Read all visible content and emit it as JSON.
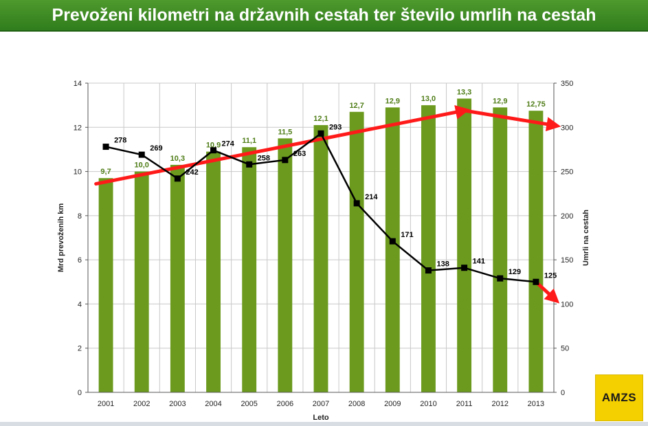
{
  "slide": {
    "title": "Prevoženi kilometri na državnih cestah ter število umrlih na cestah",
    "logo_text": "AMZS"
  },
  "chart_data": {
    "type": "bar+line",
    "categories": [
      "2001",
      "2002",
      "2003",
      "2004",
      "2005",
      "2006",
      "2007",
      "2008",
      "2009",
      "2010",
      "2011",
      "2012",
      "2013"
    ],
    "series": [
      {
        "name": "Mrd prevoženih km",
        "type": "bar",
        "axis": "left",
        "values": [
          9.7,
          10.0,
          10.3,
          10.9,
          11.1,
          11.5,
          12.1,
          12.7,
          12.9,
          13.0,
          13.3,
          12.9,
          12.75
        ],
        "labels": [
          "9,7",
          "10,0",
          "10,3",
          "10,9",
          "11,1",
          "11,5",
          "12,1",
          "12,7",
          "12,9",
          "13,0",
          "13,3",
          "12,9",
          "12,75"
        ],
        "color": "#6b9a1e",
        "label_color": "#4f7d17"
      },
      {
        "name": "Umrli na cestah",
        "type": "line",
        "axis": "right",
        "values": [
          278,
          269,
          242,
          274,
          258,
          263,
          293,
          214,
          171,
          138,
          141,
          129,
          125
        ],
        "labels": [
          "278",
          "269",
          "242",
          "274",
          "258",
          "263",
          "293",
          "214",
          "171",
          "138",
          "141",
          "129",
          "125"
        ],
        "color": "#000000"
      }
    ],
    "xlabel": "Leto",
    "ylabel_left": "Mrd prevoženih km",
    "ylabel_right": "Umrli na cestah",
    "ylim_left": [
      0,
      14
    ],
    "ylim_right": [
      0,
      350
    ],
    "yticks_left": [
      "0",
      "2",
      "4",
      "6",
      "8",
      "10",
      "12",
      "14"
    ],
    "yticks_right": [
      "0",
      "50",
      "100",
      "150",
      "200",
      "250",
      "300",
      "350"
    ],
    "grid": true,
    "annotations": [
      {
        "type": "trend-arrow",
        "color": "#ff1a1a",
        "axis": "right",
        "points": [
          {
            "x": "2001",
            "y": 236
          },
          {
            "x": "2011",
            "y": 319
          }
        ]
      },
      {
        "type": "trend-arrow",
        "color": "#ff1a1a",
        "axis": "right",
        "points": [
          {
            "x": "2011",
            "y": 319
          },
          {
            "x": "2013+",
            "y": 302
          }
        ]
      },
      {
        "type": "trend-arrow",
        "color": "#ff1a1a",
        "axis": "right",
        "points": [
          {
            "x": "2013",
            "y": 125
          },
          {
            "x": "2013+",
            "y": 105
          }
        ]
      }
    ]
  }
}
